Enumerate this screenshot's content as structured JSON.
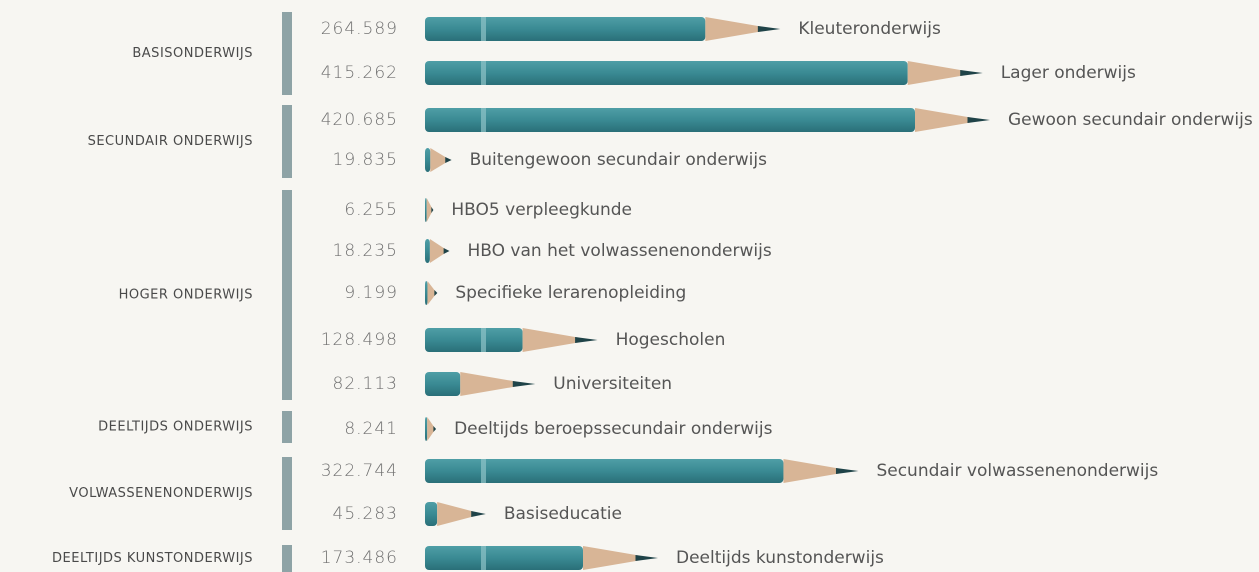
{
  "chart_data": {
    "type": "bar",
    "orientation": "horizontal",
    "color": "#3a8a93",
    "groups": [
      {
        "name": "BASISONDERWIJS",
        "categories": [
          "Kleuteronderwijs",
          "Lager onderwijs"
        ],
        "values": [
          264589,
          415262
        ],
        "value_labels": [
          "264.589",
          "415.262"
        ]
      },
      {
        "name": "SECUNDAIR ONDERWIJS",
        "categories": [
          "Gewoon secundair onderwijs",
          "Buitengewoon secundair onderwijs"
        ],
        "values": [
          420685,
          19835
        ],
        "value_labels": [
          "420.685",
          "19.835"
        ]
      },
      {
        "name": "HOGER ONDERWIJS",
        "categories": [
          "HBO5 verpleegkunde",
          "HBO van het volwassenenonderwijs",
          "Specifieke lerarenopleiding",
          "Hogescholen",
          "Universiteiten"
        ],
        "values": [
          6255,
          18235,
          9199,
          128498,
          82113
        ],
        "value_labels": [
          "6.255",
          "18.235",
          "9.199",
          "128.498",
          "82.113"
        ]
      },
      {
        "name": "DEELTIJDS ONDERWIJS",
        "categories": [
          "Deeltijds beroepssecundair onderwijs"
        ],
        "values": [
          8241
        ],
        "value_labels": [
          "8.241"
        ]
      },
      {
        "name": "VOLWASSENENONDERWIJS",
        "categories": [
          "Secundair volwassenenonderwijs",
          "Basiseducatie"
        ],
        "values": [
          322744,
          45283
        ],
        "value_labels": [
          "322.744",
          "45.283"
        ]
      },
      {
        "name": "DEELTIJDS KUNSTONDERWIJS",
        "categories": [
          "Deeltijds kunstonderwijs"
        ],
        "values": [
          173486
        ],
        "value_labels": [
          "173.486"
        ]
      }
    ]
  }
}
